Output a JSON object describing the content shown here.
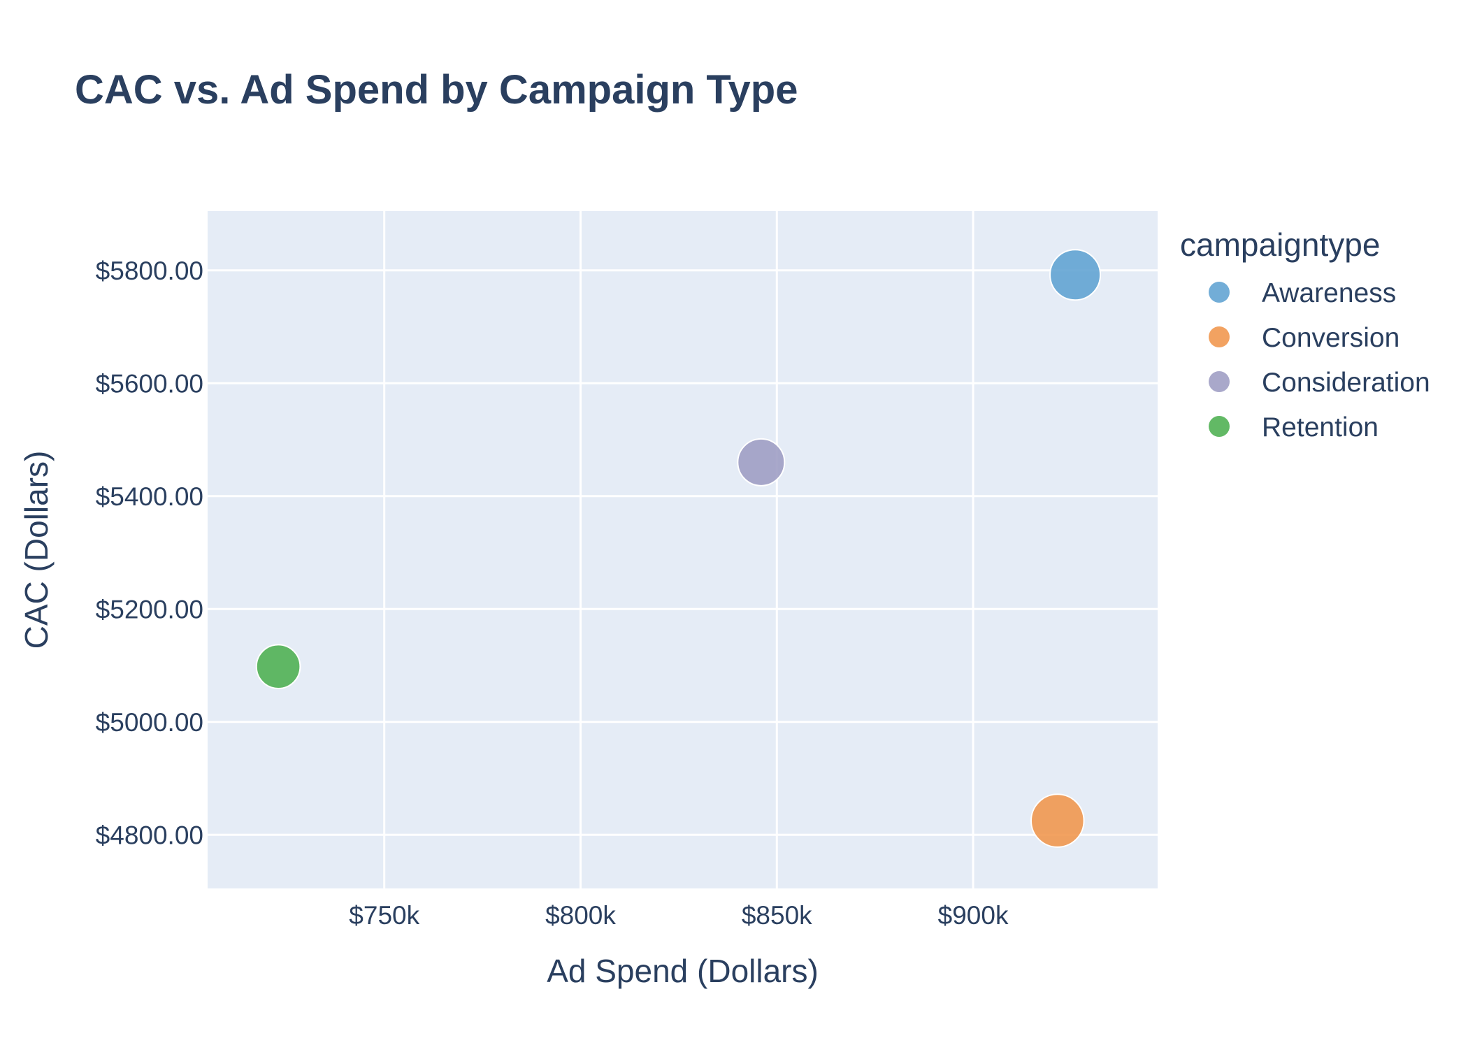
{
  "chart_data": {
    "type": "scatter",
    "title": "CAC vs. Ad Spend by Campaign Type",
    "xlabel": "Ad Spend (Dollars)",
    "ylabel": "CAC (Dollars)",
    "xlim": [
      705000,
      947000
    ],
    "ylim": [
      4705,
      5905
    ],
    "xticks": [
      750000,
      800000,
      850000,
      900000
    ],
    "xtick_labels": [
      "$750k",
      "$800k",
      "$850k",
      "$900k"
    ],
    "yticks": [
      4800,
      5000,
      5200,
      5400,
      5600,
      5800
    ],
    "ytick_labels": [
      "$4800.00",
      "$5000.00",
      "$5200.00",
      "$5400.00",
      "$5600.00",
      "$5800.00"
    ],
    "grid": true,
    "legend_title": "campaigntype",
    "legend_position": "right",
    "series": [
      {
        "name": "Awareness",
        "color": "#5fa2d2",
        "points": [
          {
            "x": 926000,
            "y": 5792,
            "size": 1.0
          }
        ]
      },
      {
        "name": "Conversion",
        "color": "#f0954b",
        "points": [
          {
            "x": 921500,
            "y": 4825,
            "size": 1.05
          }
        ]
      },
      {
        "name": "Consideration",
        "color": "#9d9cc3",
        "points": [
          {
            "x": 846000,
            "y": 5460,
            "size": 0.93
          }
        ]
      },
      {
        "name": "Retention",
        "color": "#4caf50",
        "points": [
          {
            "x": 723000,
            "y": 5098,
            "size": 0.87
          }
        ]
      }
    ]
  }
}
